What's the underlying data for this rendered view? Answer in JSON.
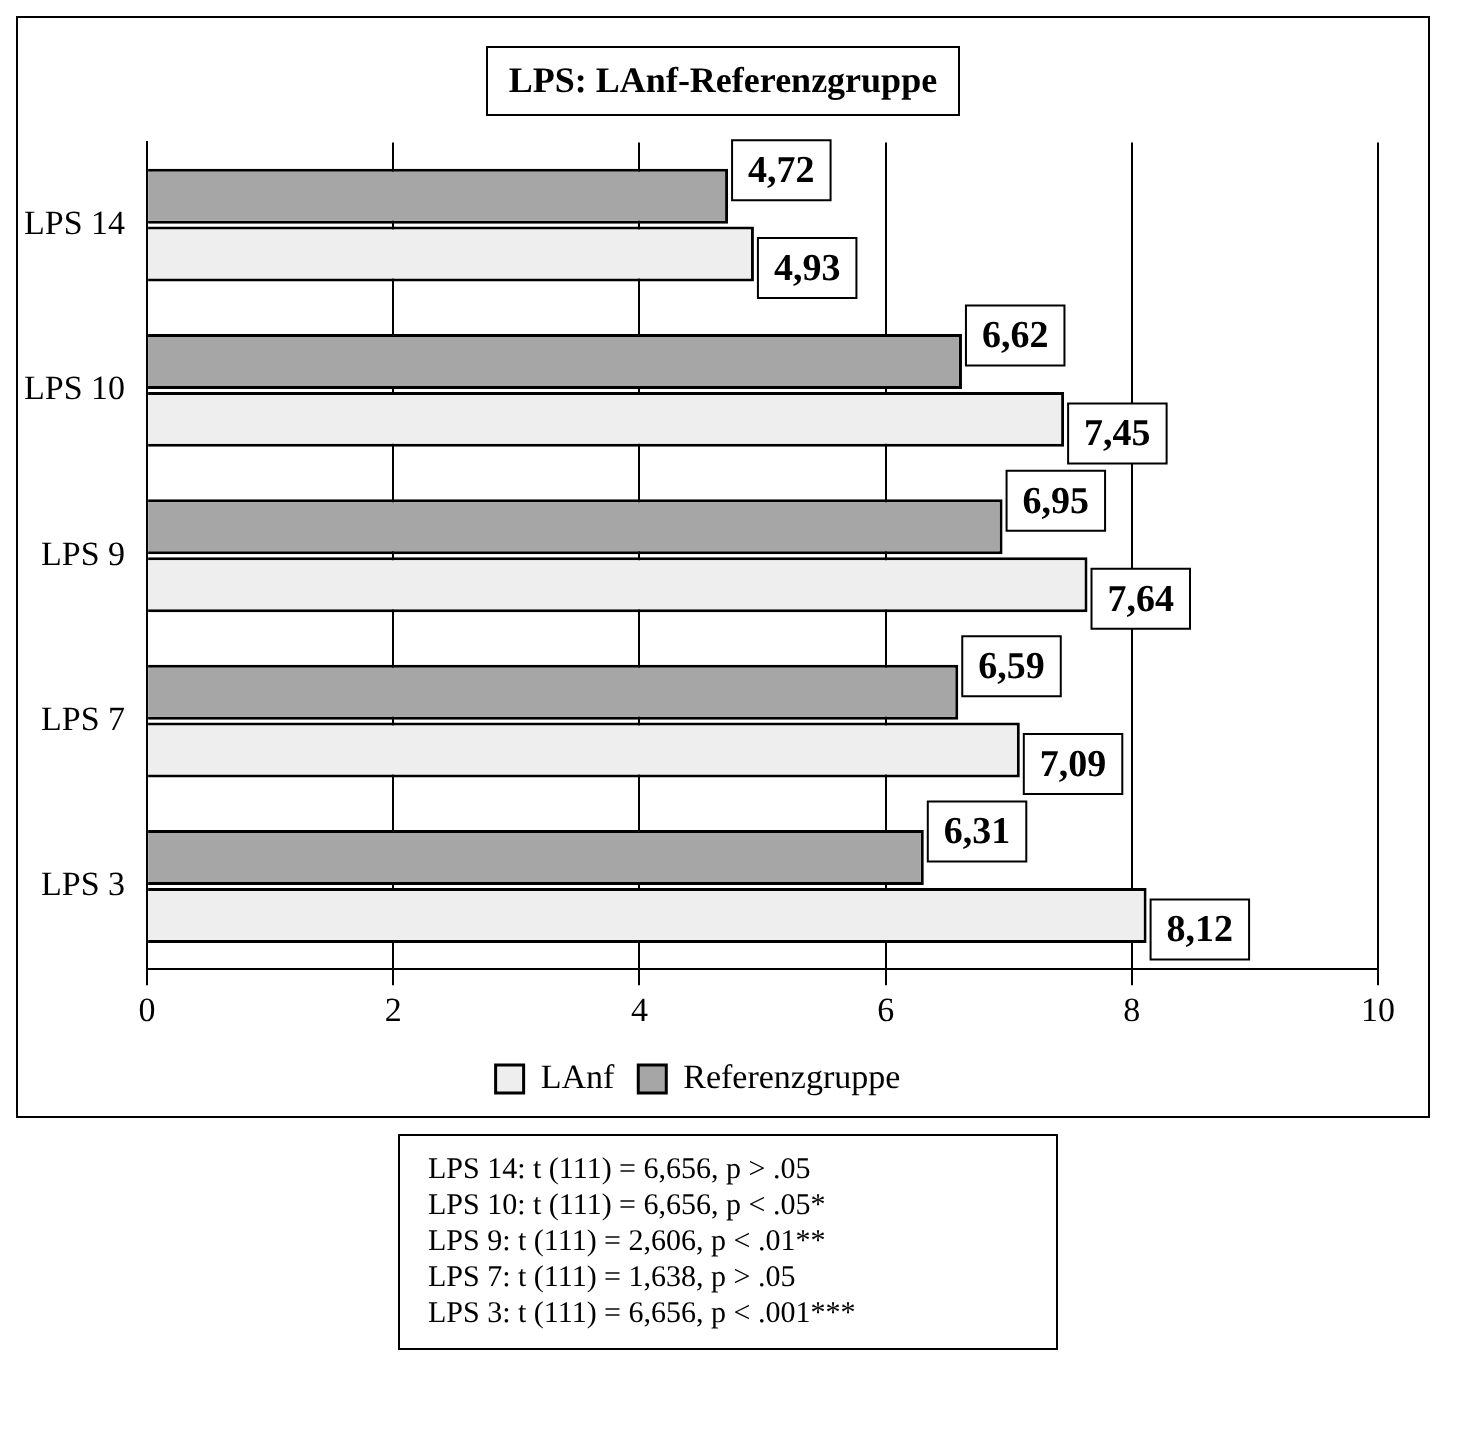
{
  "chart_data": {
    "type": "bar",
    "orientation": "horizontal",
    "title": "LPS: LAnf-Referenzgruppe",
    "categories": [
      "LPS 14",
      "LPS 10",
      "LPS 9",
      "LPS 7",
      "LPS 3"
    ],
    "series": [
      {
        "name": "LAnf",
        "color": "#eeeeee",
        "values": [
          4.93,
          7.45,
          7.64,
          7.09,
          8.12
        ],
        "value_labels": [
          "4,93",
          "7,45",
          "7,64",
          "7,09",
          "8,12"
        ]
      },
      {
        "name": "Referenzgruppe",
        "color": "#a6a6a6",
        "values": [
          4.72,
          6.62,
          6.95,
          6.59,
          6.31
        ],
        "value_labels": [
          "4,72",
          "6,62",
          "6,95",
          "6,59",
          "6,31"
        ]
      }
    ],
    "xlim": [
      0,
      10
    ],
    "xticks": [
      0,
      2,
      4,
      6,
      8,
      10
    ],
    "grid": "x",
    "legend": "bottom",
    "annotations": [
      "LPS 14: t (111) = 6,656, p > .05",
      "LPS 10: t (111) = 6,656, p < .05*",
      "LPS 9: t (111) = 2,606, p < .01**",
      "LPS 7: t (111) = 1,638, p > .05",
      "LPS 3: t (111) = 6,656, p < .001***"
    ]
  }
}
